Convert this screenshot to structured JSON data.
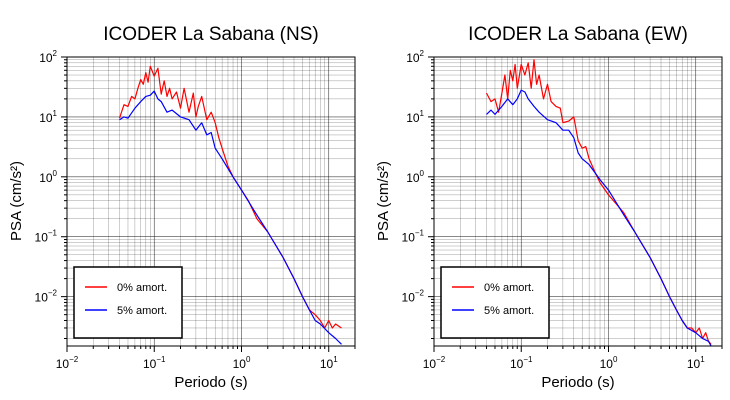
{
  "chart_data": [
    {
      "type": "line",
      "title": "ICODER La Sabana (NS)",
      "xlabel": "Periodo (s)",
      "ylabel": "PSA (cm/s²)",
      "xscale": "log",
      "yscale": "log",
      "xlim": [
        0.01,
        20
      ],
      "ylim": [
        0.0015,
        100
      ],
      "grid": true,
      "legend_position": "bottom-left",
      "xticks": [
        {
          "base": "10",
          "exp": "−2"
        },
        {
          "base": "10",
          "exp": "−1"
        },
        {
          "base": "10",
          "exp": "0"
        },
        {
          "base": "10",
          "exp": "1"
        }
      ],
      "yticks": [
        {
          "base": "10",
          "exp": "−2"
        },
        {
          "base": "10",
          "exp": "−1"
        },
        {
          "base": "10",
          "exp": "0"
        },
        {
          "base": "10",
          "exp": "1"
        },
        {
          "base": "10",
          "exp": "2"
        }
      ],
      "series": [
        {
          "name": "0% amort.",
          "color": "#ff0000",
          "x": [
            0.04,
            0.045,
            0.05,
            0.055,
            0.06,
            0.065,
            0.07,
            0.075,
            0.08,
            0.085,
            0.09,
            0.1,
            0.11,
            0.12,
            0.13,
            0.14,
            0.15,
            0.16,
            0.18,
            0.2,
            0.22,
            0.25,
            0.28,
            0.3,
            0.32,
            0.35,
            0.4,
            0.45,
            0.5,
            0.55,
            0.6,
            0.7,
            0.8,
            1.0,
            1.2,
            1.5,
            2.0,
            2.5,
            3.0,
            4.0,
            5.0,
            6.0,
            7.0,
            8.0,
            9.0,
            10.0,
            11.0,
            12.0,
            14.0
          ],
          "y": [
            9.5,
            16,
            15,
            22,
            20,
            30,
            42,
            35,
            55,
            38,
            70,
            48,
            65,
            24,
            40,
            22,
            30,
            20,
            26,
            14,
            30,
            12,
            25,
            10,
            15,
            22,
            9,
            12,
            8,
            4.5,
            3,
            1.5,
            1,
            0.6,
            0.4,
            0.2,
            0.12,
            0.07,
            0.045,
            0.02,
            0.01,
            0.006,
            0.005,
            0.004,
            0.003,
            0.004,
            0.003,
            0.0035,
            0.003
          ]
        },
        {
          "name": "5% amort.",
          "color": "#0000ff",
          "x": [
            0.04,
            0.045,
            0.05,
            0.06,
            0.07,
            0.08,
            0.09,
            0.1,
            0.11,
            0.12,
            0.14,
            0.16,
            0.2,
            0.25,
            0.3,
            0.35,
            0.4,
            0.45,
            0.5,
            0.6,
            0.8,
            1.0,
            1.5,
            2.0,
            3.0,
            4.0,
            5.0,
            6.0,
            7.0,
            8.0,
            10.0,
            12.0,
            14.0
          ],
          "y": [
            9,
            10,
            9.5,
            14,
            18,
            22,
            23,
            27,
            20,
            18,
            12,
            13,
            10,
            9,
            6,
            8,
            5,
            5.5,
            3,
            2,
            1,
            0.6,
            0.23,
            0.12,
            0.045,
            0.02,
            0.01,
            0.006,
            0.004,
            0.0035,
            0.0025,
            0.002,
            0.0016
          ]
        }
      ]
    },
    {
      "type": "line",
      "title": "ICODER La Sabana (EW)",
      "xlabel": "Periodo (s)",
      "ylabel": "PSA (cm/s²)",
      "xscale": "log",
      "yscale": "log",
      "xlim": [
        0.01,
        20
      ],
      "ylim": [
        0.0015,
        100
      ],
      "grid": true,
      "legend_position": "bottom-left",
      "xticks": [
        {
          "base": "10",
          "exp": "−2"
        },
        {
          "base": "10",
          "exp": "−1"
        },
        {
          "base": "10",
          "exp": "0"
        },
        {
          "base": "10",
          "exp": "1"
        }
      ],
      "yticks": [
        {
          "base": "10",
          "exp": "−2"
        },
        {
          "base": "10",
          "exp": "−1"
        },
        {
          "base": "10",
          "exp": "0"
        },
        {
          "base": "10",
          "exp": "1"
        },
        {
          "base": "10",
          "exp": "2"
        }
      ],
      "series": [
        {
          "name": "0% amort.",
          "color": "#ff0000",
          "x": [
            0.04,
            0.045,
            0.05,
            0.055,
            0.06,
            0.065,
            0.07,
            0.075,
            0.08,
            0.085,
            0.09,
            0.1,
            0.11,
            0.12,
            0.13,
            0.14,
            0.15,
            0.16,
            0.18,
            0.2,
            0.22,
            0.25,
            0.28,
            0.3,
            0.35,
            0.4,
            0.45,
            0.5,
            0.55,
            0.6,
            0.7,
            0.8,
            1.0,
            1.5,
            2.0,
            3.0,
            4.0,
            5.0,
            6.0,
            7.0,
            8.0,
            9.0,
            10.0,
            11.0,
            12.0,
            13.0,
            14.0,
            15.0
          ],
          "y": [
            25,
            18,
            20,
            12,
            25,
            50,
            20,
            60,
            40,
            75,
            30,
            75,
            50,
            80,
            30,
            90,
            35,
            50,
            20,
            35,
            18,
            15,
            14,
            8,
            8.5,
            10,
            4,
            3,
            3.2,
            2,
            1.2,
            0.8,
            0.5,
            0.25,
            0.12,
            0.045,
            0.02,
            0.01,
            0.006,
            0.004,
            0.003,
            0.003,
            0.0025,
            0.003,
            0.002,
            0.0025,
            0.0018,
            0.0016
          ]
        },
        {
          "name": "5% amort.",
          "color": "#0000ff",
          "x": [
            0.04,
            0.045,
            0.05,
            0.06,
            0.07,
            0.08,
            0.09,
            0.1,
            0.11,
            0.12,
            0.14,
            0.16,
            0.2,
            0.25,
            0.3,
            0.35,
            0.4,
            0.45,
            0.5,
            0.6,
            0.8,
            1.0,
            1.5,
            2.0,
            3.0,
            4.0,
            5.0,
            6.0,
            7.0,
            8.0,
            10.0,
            12.0,
            14.0,
            15.0
          ],
          "y": [
            11,
            13,
            11,
            15,
            20,
            16,
            20,
            28,
            26,
            20,
            15,
            12,
            9,
            8,
            6,
            6,
            4.5,
            2.5,
            2,
            1.6,
            0.9,
            0.6,
            0.23,
            0.12,
            0.045,
            0.02,
            0.01,
            0.006,
            0.004,
            0.003,
            0.0025,
            0.002,
            0.0018,
            0.0015
          ]
        }
      ]
    }
  ]
}
